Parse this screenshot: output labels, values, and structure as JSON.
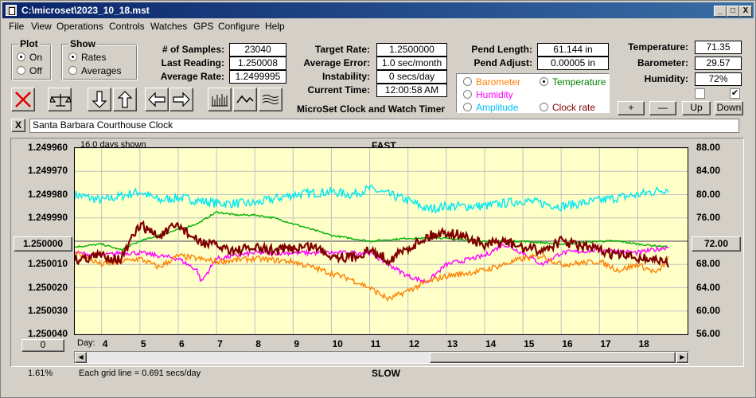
{
  "window": {
    "title": "C:\\microset\\2023_10_18.mst"
  },
  "titlebuttons": [
    "_",
    "□",
    "X"
  ],
  "menu": [
    "File",
    "View",
    "Operations",
    "Controls",
    "Watches",
    "GPS",
    "Configure",
    "Help"
  ],
  "plot_group": {
    "title": "Plot",
    "options": [
      "On",
      "Off"
    ],
    "selected": 0
  },
  "show_group": {
    "title": "Show",
    "options": [
      "Rates",
      "Averages"
    ],
    "selected": 0
  },
  "stats": {
    "samples_label": "# of Samples:",
    "samples": "23040",
    "last_label": "Last Reading:",
    "last": "1.250008",
    "avg_label": "Average Rate:",
    "avg": "1.2499995"
  },
  "rates": {
    "target_label": "Target Rate:",
    "target": "1.2500000",
    "err_label": "Average Error:",
    "err": "1.0 sec/month",
    "inst_label": "Instability:",
    "inst": "0 secs/day",
    "time_label": "Current Time:",
    "time": "12:00:58 AM"
  },
  "app_caption": "MicroSet Clock and Watch Timer",
  "pend": {
    "len_label": "Pend Length:",
    "len": "61.144 in",
    "adj_label": "Pend Adjust:",
    "adj": "0.00005 in"
  },
  "sensor_select": {
    "options": [
      {
        "label": "Barometer",
        "color": "#ff8000"
      },
      {
        "label": "Temperature",
        "color": "#008000"
      },
      {
        "label": "Humidity",
        "color": "#ff00ff"
      },
      {
        "label": "Amplitude",
        "color": "#00c0ff"
      },
      {
        "label": "Clock rate",
        "color": "#800000"
      }
    ],
    "selected": 1
  },
  "env": {
    "temp_label": "Temperature:",
    "temp": "71.35",
    "baro_label": "Barometer:",
    "baro": "29.57",
    "hum_label": "Humidity:",
    "hum": "72%",
    "checks": [
      false,
      true
    ]
  },
  "scale_buttons": [
    "+",
    "—",
    "Up",
    "Down"
  ],
  "clock_name": "Santa Barbara Courthouse Clock",
  "close_x": "X",
  "chart_data": {
    "type": "line",
    "title": "FAST",
    "bottom_title": "SLOW",
    "days_shown": "16.0 days shown",
    "grid_note": "Each grid line = 0.691 secs/day",
    "percent": "1.61%",
    "xlabel": "Day:",
    "x_ticks": [
      4,
      5,
      6,
      7,
      8,
      9,
      10,
      11,
      12,
      13,
      14,
      15,
      16,
      17,
      18
    ],
    "x_range": [
      3.3,
      19.3
    ],
    "y_left_ticks": [
      "1.249960",
      "1.249970",
      "1.249980",
      "1.249990",
      "1.250000",
      "1.250010",
      "1.250020",
      "1.250030",
      "1.250040"
    ],
    "y_left_range": [
      1.24996,
      1.25004
    ],
    "y_left_center_button": "1.250000",
    "y_right_ticks": [
      "88.00",
      "84.00",
      "80.00",
      "76.00",
      "72.00",
      "68.00",
      "64.00",
      "60.00",
      "56.00"
    ],
    "y_right_range": [
      56,
      88
    ],
    "y_right_center_button": "72.00",
    "bottom_left_button": "0",
    "series": [
      {
        "name": "Amplitude",
        "color": "#00e8f0",
        "axis": "right",
        "x": [
          3.3,
          4,
          5,
          5.5,
          6,
          6.5,
          7,
          8,
          9,
          10,
          10.5,
          11,
          12,
          12.5,
          13,
          14,
          15,
          16,
          17,
          18,
          18.8
        ],
        "y": [
          80,
          79,
          80.5,
          79,
          79.5,
          79,
          78.5,
          78.5,
          80,
          80.5,
          80,
          81,
          79,
          77.5,
          78,
          78,
          79,
          78,
          79,
          80,
          81
        ],
        "noise": 0.8
      },
      {
        "name": "Temperature",
        "color": "#00b000",
        "axis": "right",
        "x": [
          3.3,
          4,
          4.5,
          5,
          5.5,
          6,
          6.5,
          7,
          7.5,
          8,
          8.5,
          9,
          9.5,
          10,
          11,
          12,
          13,
          14,
          15,
          16,
          17,
          17.5,
          18,
          18.8
        ],
        "y": [
          71,
          71.5,
          70.5,
          72,
          73,
          74,
          75,
          77,
          76.5,
          76.5,
          76,
          75,
          74,
          73,
          72,
          72.5,
          72.5,
          72,
          72,
          71.5,
          72,
          72,
          71.5,
          71
        ],
        "noise": 0.15
      },
      {
        "name": "Humidity",
        "color": "#ff00ff",
        "axis": "right",
        "x": [
          3.3,
          4,
          4.5,
          5,
          5.5,
          6,
          6.5,
          6.6,
          7,
          7.5,
          8,
          9,
          10,
          11,
          11.5,
          12,
          12.5,
          13,
          14,
          14.5,
          15,
          15.5,
          16,
          17,
          18,
          18.8
        ],
        "y": [
          70,
          69.5,
          70,
          70,
          69.5,
          69,
          67,
          65,
          69,
          69.5,
          70,
          70,
          70,
          70,
          68,
          66,
          65,
          68,
          69.5,
          71.5,
          70,
          68,
          70,
          70.5,
          70,
          71
        ],
        "noise": 0.4
      },
      {
        "name": "Barometer",
        "color": "#ff8000",
        "axis": "right",
        "x": [
          3.3,
          4,
          5,
          5.5,
          6,
          7,
          8,
          9,
          10,
          10.5,
          11,
          11.5,
          12,
          12.5,
          13,
          14,
          15,
          15.5,
          16,
          17,
          17.5,
          18,
          18.5,
          18.8
        ],
        "y": [
          70,
          68,
          69,
          67.5,
          69.5,
          68.5,
          69,
          68.5,
          66.5,
          65.5,
          64,
          62,
          63.5,
          65,
          66,
          67,
          69,
          69.5,
          68,
          68.5,
          67,
          68,
          66.5,
          69
        ],
        "noise": 0.5
      },
      {
        "name": "Clock rate",
        "color": "#800000",
        "axis": "left",
        "x": [
          3.3,
          4,
          4.5,
          5,
          5.5,
          6,
          6.5,
          7,
          7.5,
          8,
          8.5,
          9,
          9.5,
          10,
          10.5,
          11,
          11.5,
          12,
          12.5,
          13,
          13.5,
          14,
          14.5,
          15,
          15.5,
          16,
          16.5,
          17,
          17.5,
          18,
          18.5,
          18.8
        ],
        "y": [
          1.250008,
          1.250006,
          1.250008,
          1.249993,
          1.249998,
          1.249993,
          1.25,
          1.250002,
          1.250004,
          1.250003,
          1.250004,
          1.250003,
          1.250002,
          1.250006,
          1.250007,
          1.250004,
          1.250008,
          1.250003,
          1.249998,
          1.249996,
          1.249998,
          1.250002,
          1.25,
          1.250003,
          1.250004,
          1.25,
          1.250002,
          1.250004,
          1.250006,
          1.250007,
          1.250008,
          1.25001
        ],
        "noise": 2.2e-06
      }
    ]
  }
}
